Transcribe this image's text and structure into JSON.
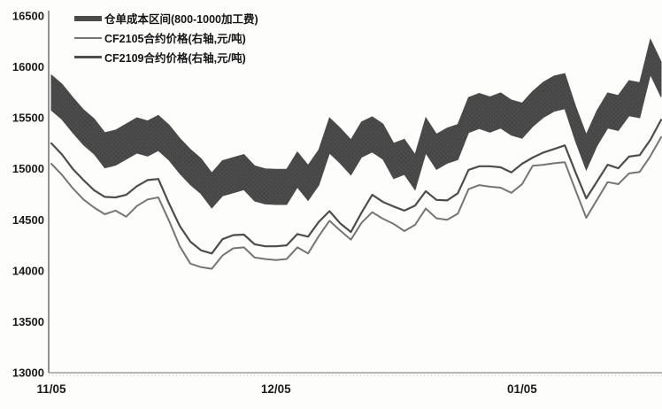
{
  "chart_data": {
    "type": "area",
    "title": "",
    "grid": "off",
    "legend_position": "top-left-inside",
    "y_axis": {
      "side": "left",
      "min": 13000,
      "max": 16500,
      "step": 500,
      "ticks": [
        16500,
        16000,
        15500,
        15000,
        14500,
        14000,
        13500,
        13000
      ]
    },
    "x_axis": {
      "tick_labels": [
        "11/05",
        "12/05",
        "01/05"
      ],
      "tick_point_indices": [
        0,
        21,
        44
      ],
      "n_points": 58
    },
    "series": [
      {
        "name": "仓单成本区间(800-1000加工费)",
        "type": "band",
        "color": "#4b4b4b",
        "high": [
          15920,
          15830,
          15700,
          15580,
          15490,
          15355,
          15380,
          15440,
          15500,
          15470,
          15525,
          15430,
          15300,
          15190,
          15100,
          14960,
          15080,
          15110,
          15140,
          15030,
          15000,
          14995,
          14995,
          15165,
          15035,
          15185,
          15500,
          15400,
          15285,
          15460,
          15510,
          15440,
          15250,
          15290,
          15140,
          15500,
          15340,
          15400,
          15435,
          15700,
          15740,
          15705,
          15745,
          15675,
          15645,
          15760,
          15850,
          15910,
          15935,
          15615,
          15335,
          15570,
          15745,
          15720,
          15865,
          15845,
          16270,
          16050
        ],
        "low": [
          15575,
          15485,
          15355,
          15235,
          15145,
          15010,
          15035,
          15095,
          15155,
          15125,
          15180,
          15085,
          14955,
          14845,
          14755,
          14615,
          14735,
          14765,
          14795,
          14685,
          14655,
          14650,
          14650,
          14820,
          14690,
          14840,
          15155,
          15055,
          14940,
          15115,
          15165,
          15095,
          14905,
          14945,
          14795,
          15155,
          14995,
          15055,
          15090,
          15355,
          15395,
          15360,
          15400,
          15330,
          15300,
          15415,
          15505,
          15565,
          15590,
          15270,
          14990,
          15225,
          15400,
          15375,
          15520,
          15500,
          15925,
          15705
        ]
      },
      {
        "name": "CF2105合约价格(右轴,元/吨)",
        "type": "line",
        "color": "#757575",
        "values": [
          15050,
          14940,
          14810,
          14700,
          14620,
          14555,
          14590,
          14530,
          14635,
          14700,
          14720,
          14490,
          14240,
          14070,
          14035,
          14020,
          14150,
          14220,
          14230,
          14130,
          14115,
          14105,
          14115,
          14230,
          14170,
          14340,
          14490,
          14395,
          14305,
          14470,
          14575,
          14510,
          14460,
          14390,
          14450,
          14610,
          14515,
          14500,
          14560,
          14800,
          14840,
          14825,
          14815,
          14765,
          14850,
          15030,
          15040,
          15055,
          15065,
          14790,
          14520,
          14695,
          14870,
          14850,
          14955,
          14970,
          15125,
          15310
        ]
      },
      {
        "name": "CF2109合约价格(右轴,元/吨)",
        "type": "line",
        "color": "#4d4d4d",
        "values": [
          15250,
          15140,
          15000,
          14890,
          14790,
          14725,
          14720,
          14745,
          14830,
          14890,
          14900,
          14660,
          14440,
          14285,
          14200,
          14170,
          14310,
          14350,
          14355,
          14260,
          14240,
          14240,
          14250,
          14360,
          14335,
          14480,
          14585,
          14465,
          14380,
          14570,
          14745,
          14675,
          14630,
          14590,
          14640,
          14780,
          14695,
          14690,
          14760,
          14990,
          15025,
          15025,
          15015,
          14965,
          15050,
          15110,
          15160,
          15195,
          15230,
          14965,
          14710,
          14875,
          15040,
          15005,
          15120,
          15135,
          15285,
          15480
        ]
      }
    ]
  },
  "colors": {
    "band": "#4b4b4b",
    "band_dot": "#353535",
    "line_cf2105": "#757575",
    "line_cf2109": "#4d4d4d",
    "axis": "#8a8a8a",
    "axis_y": "#6e6e6e",
    "tick_text": "#1a1a1a",
    "background": "#fdfdfc"
  }
}
